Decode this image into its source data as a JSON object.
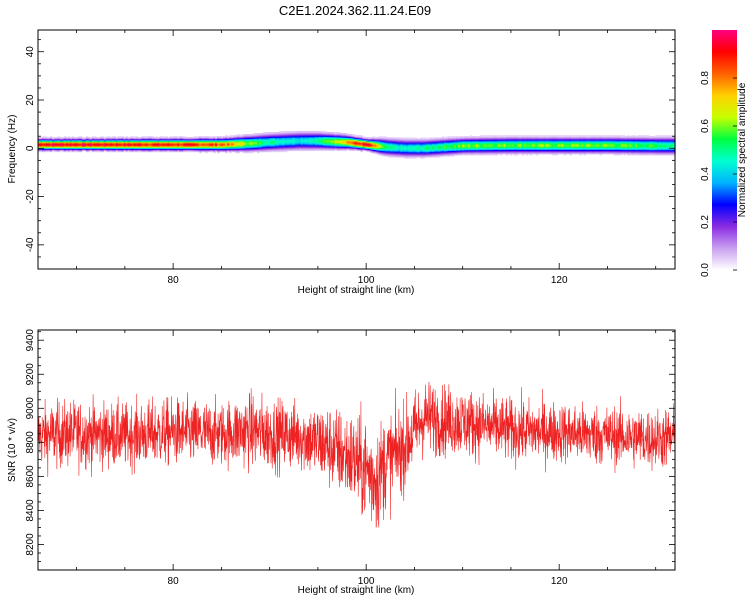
{
  "title": "C2E1.2024.362.11.24.E09",
  "chart_data": [
    {
      "type": "heatmap",
      "xlabel": "Height of straight line (km)",
      "ylabel": "Frequency (Hz)",
      "xlim": [
        66,
        132
      ],
      "ylim": [
        -50,
        49
      ],
      "x_ticks": [
        80,
        100,
        120
      ],
      "y_ticks": [
        -40,
        -20,
        0,
        20,
        40
      ],
      "colorbar": {
        "label": "Normalized spectral amplitude",
        "range": [
          0,
          1
        ],
        "ticks": [
          0.0,
          0.2,
          0.4,
          0.6,
          0.8
        ],
        "colormap": [
          "#ffffff",
          "#c9a0f0",
          "#8a2be2",
          "#0000ff",
          "#00b4ff",
          "#00ffd0",
          "#00ff40",
          "#c8ff00",
          "#ffd000",
          "#ff6000",
          "#ff0000",
          "#ff0080"
        ]
      },
      "ridge": {
        "x": [
          66,
          70,
          75,
          80,
          85,
          88,
          90,
          93,
          95,
          98,
          100,
          102,
          104,
          106,
          108,
          110,
          115,
          120,
          125,
          130,
          132
        ],
        "center_hz": [
          1.5,
          1.5,
          1.5,
          1.5,
          1.5,
          2.0,
          2.5,
          3.0,
          3.0,
          2.5,
          1.5,
          0.5,
          0.0,
          0.0,
          0.5,
          1.0,
          1.2,
          1.2,
          1.2,
          1.0,
          1.0
        ],
        "amplitude": [
          0.95,
          0.95,
          0.92,
          0.9,
          0.85,
          0.6,
          0.5,
          0.45,
          0.5,
          0.8,
          0.95,
          0.5,
          0.45,
          0.5,
          0.55,
          0.6,
          0.6,
          0.6,
          0.6,
          0.55,
          0.5
        ]
      }
    },
    {
      "type": "line",
      "xlabel": "Height of straight line (km)",
      "ylabel": "SNR (10 * v/v)",
      "xlim": [
        66,
        132
      ],
      "ylim": [
        8050,
        9460
      ],
      "x_ticks": [
        80,
        100,
        120
      ],
      "y_ticks": [
        8200,
        8400,
        8600,
        8800,
        9000,
        9200,
        9400
      ],
      "color": "#ee2222",
      "envelope": {
        "x": [
          66,
          70,
          75,
          80,
          85,
          88,
          90,
          93,
          96,
          98,
          100,
          101,
          102,
          104,
          106,
          108,
          110,
          115,
          120,
          125,
          130,
          132
        ],
        "mean": [
          8840,
          8850,
          8840,
          8860,
          8850,
          8870,
          8850,
          8840,
          8780,
          8720,
          8640,
          8580,
          8680,
          8780,
          8950,
          8930,
          8920,
          8870,
          8860,
          8840,
          8820,
          8830
        ],
        "spread": [
          170,
          180,
          170,
          180,
          170,
          200,
          190,
          180,
          220,
          240,
          280,
          300,
          260,
          230,
          200,
          190,
          180,
          170,
          160,
          160,
          160,
          170
        ]
      }
    }
  ]
}
